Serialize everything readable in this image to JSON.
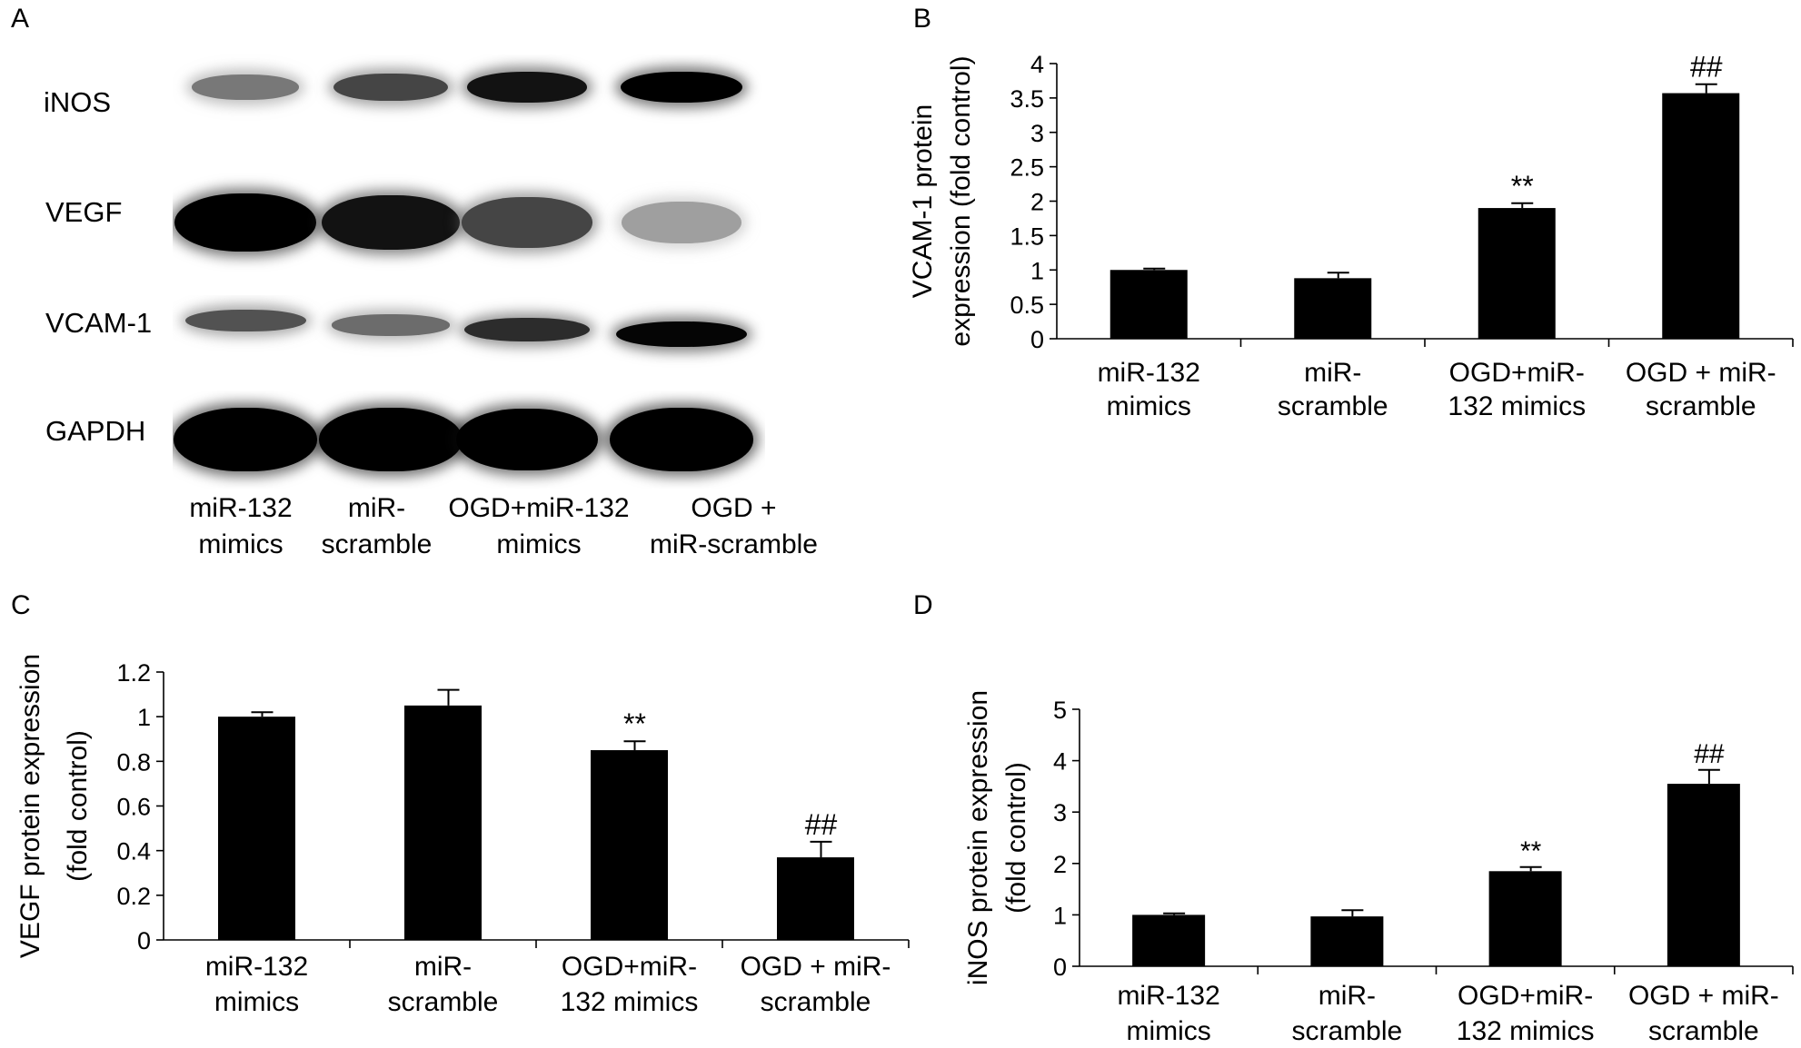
{
  "figure": {
    "panels": [
      {
        "letter": "A"
      },
      {
        "letter": "B"
      },
      {
        "letter": "C"
      },
      {
        "letter": "D"
      }
    ]
  },
  "western_blot": {
    "proteins": [
      "iNOS",
      "VEGF",
      "VCAM-1",
      "GAPDH"
    ],
    "lanes": [
      [
        "miR-132",
        "mimics"
      ],
      [
        "miR-",
        "scramble"
      ],
      [
        "OGD+miR-132",
        "mimics"
      ],
      [
        "OGD +",
        "miR-scramble"
      ]
    ],
    "band_intensity": {
      "iNOS": [
        0.45,
        0.65,
        0.85,
        0.95
      ],
      "VEGF": [
        0.95,
        0.85,
        0.65,
        0.3
      ],
      "VCAM-1": [
        0.6,
        0.5,
        0.75,
        0.9
      ],
      "GAPDH": [
        1.0,
        1.0,
        0.95,
        1.0
      ]
    }
  },
  "chart_data": [
    {
      "panel": "B",
      "type": "bar",
      "categories": [
        [
          "miR-132",
          "mimics"
        ],
        [
          "miR-",
          "scramble"
        ],
        [
          "OGD+miR-",
          "132 mimics"
        ],
        [
          "OGD + miR-",
          "scramble"
        ]
      ],
      "values": [
        1.0,
        0.88,
        1.9,
        3.57
      ],
      "errors": [
        0.02,
        0.08,
        0.07,
        0.13
      ],
      "annotations": [
        "",
        "",
        "**",
        "##"
      ],
      "ylabel": [
        "VCAM-1 protein",
        "expression (fold control)"
      ],
      "ylim": [
        0,
        4
      ],
      "yticks": [
        0,
        0.5,
        1,
        1.5,
        2,
        2.5,
        3,
        3.5,
        4
      ],
      "ytick_labels": [
        "0",
        "0.5",
        "1",
        "1.5",
        "2",
        "2.5",
        "3",
        "3.5",
        "4"
      ],
      "grid": false,
      "bar_color": "#000000"
    },
    {
      "panel": "C",
      "type": "bar",
      "categories": [
        [
          "miR-132",
          "mimics"
        ],
        [
          "miR-",
          "scramble"
        ],
        [
          "OGD+miR-",
          "132 mimics"
        ],
        [
          "OGD + miR-",
          "scramble"
        ]
      ],
      "values": [
        1.0,
        1.05,
        0.85,
        0.37
      ],
      "errors": [
        0.02,
        0.07,
        0.04,
        0.07
      ],
      "annotations": [
        "",
        "",
        "**",
        "##"
      ],
      "ylabel": [
        "VEGF protein expression",
        "(fold control)"
      ],
      "ylim": [
        0,
        1.2
      ],
      "yticks": [
        0,
        0.2,
        0.4,
        0.6,
        0.8,
        1.0,
        1.2
      ],
      "ytick_labels": [
        "0",
        "0.2",
        "0.4",
        "0.6",
        "0.8",
        "1",
        "1.2"
      ],
      "grid": false,
      "bar_color": "#000000"
    },
    {
      "panel": "D",
      "type": "bar",
      "categories": [
        [
          "miR-132",
          "mimics"
        ],
        [
          "miR-",
          "scramble"
        ],
        [
          "OGD+miR-",
          "132 mimics"
        ],
        [
          "OGD + miR-",
          "scramble"
        ]
      ],
      "values": [
        1.0,
        0.97,
        1.85,
        3.55
      ],
      "errors": [
        0.03,
        0.12,
        0.08,
        0.27
      ],
      "annotations": [
        "",
        "",
        "**",
        "##"
      ],
      "ylabel": [
        "iNOS protein expression",
        "(fold control)"
      ],
      "ylim": [
        0,
        5
      ],
      "yticks": [
        0,
        1,
        2,
        3,
        4,
        5
      ],
      "ytick_labels": [
        "0",
        "1",
        "2",
        "3",
        "4",
        "5"
      ],
      "grid": false,
      "bar_color": "#000000"
    }
  ]
}
